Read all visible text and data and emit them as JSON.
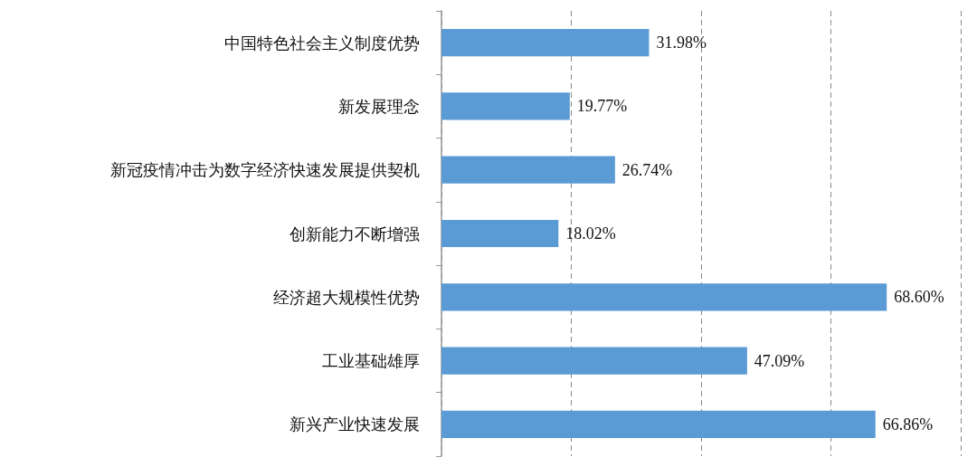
{
  "chart_data": {
    "type": "bar",
    "orientation": "horizontal",
    "categories": [
      "中国特色社会主义制度优势",
      "新发展理念",
      "新冠疫情冲击为数字经济快速发展提供契机",
      "创新能力不断增强",
      "经济超大规模性优势",
      "工业基础雄厚",
      "新兴产业快速发展"
    ],
    "values": [
      31.98,
      19.77,
      26.74,
      18.02,
      68.6,
      47.09,
      66.86
    ],
    "value_labels": [
      "31.98%",
      "19.77%",
      "26.74%",
      "18.02%",
      "68.60%",
      "47.09%",
      "66.86%"
    ],
    "color": "#5b9bd5",
    "xlim": [
      0,
      80
    ],
    "xticks": [
      {
        "value": 0,
        "label": null
      },
      {
        "value": 20,
        "label": null
      },
      {
        "value": 40,
        "label": null
      },
      {
        "value": 60,
        "label": null
      },
      {
        "value": 80,
        "label": null
      }
    ],
    "tick_labels": "y",
    "grid": "x"
  }
}
